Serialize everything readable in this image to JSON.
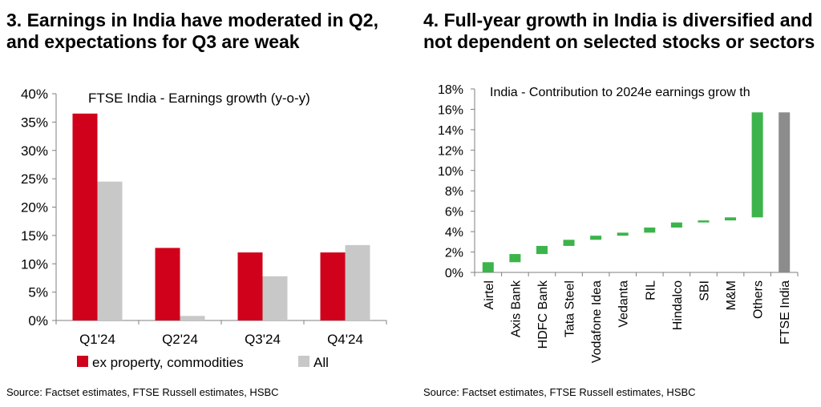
{
  "left_panel": {
    "title": "3. Earnings in India have moderated in Q2, and expectations for Q3 are weak",
    "source": "Source: Factset estimates, FTSE Russell estimates, HSBC"
  },
  "right_panel": {
    "title": "4. Full-year growth in India is diversified and not dependent on selected stocks or sectors",
    "source": "Source: Factset estimates, FTSE Russell estimates, HSBC"
  },
  "colors": {
    "red": "#d0021b",
    "gray_light": "#c8c8c8",
    "green": "#3cb44b",
    "gray_dark": "#8c8c8c",
    "axis": "#7f7f7f"
  },
  "chart_data": [
    {
      "type": "bar",
      "title": "FTSE India - Earnings growth (y-o-y)",
      "categories": [
        "Q1'24",
        "Q2'24",
        "Q3'24",
        "Q4'24"
      ],
      "series": [
        {
          "name": "ex property, commodities",
          "color": "#d0021b",
          "values": [
            36.5,
            12.8,
            12.0,
            12.0
          ]
        },
        {
          "name": "All",
          "color": "#c8c8c8",
          "values": [
            24.5,
            0.8,
            7.8,
            13.3
          ]
        }
      ],
      "ylim": [
        0,
        40
      ],
      "yticks": [
        "0%",
        "5%",
        "10%",
        "15%",
        "20%",
        "25%",
        "30%",
        "35%",
        "40%"
      ],
      "legend": "bottom"
    },
    {
      "type": "bar",
      "subtype": "waterfall",
      "title": "India - Contribution to 2024e earnings grow th",
      "categories": [
        "Airtel",
        "Axis Bank",
        "HDFC Bank",
        "Tata Steel",
        "Vodafone Idea",
        "Vedanta",
        "RIL",
        "Hindalco",
        "SBI",
        "M&M",
        "Others",
        "FTSE India"
      ],
      "ranges": [
        [
          0,
          1.0
        ],
        [
          1.0,
          1.8
        ],
        [
          1.8,
          2.6
        ],
        [
          2.6,
          3.2
        ],
        [
          3.2,
          3.6
        ],
        [
          3.6,
          3.9
        ],
        [
          3.9,
          4.4
        ],
        [
          4.4,
          4.9
        ],
        [
          4.9,
          5.1
        ],
        [
          5.1,
          5.4
        ],
        [
          5.4,
          15.7
        ],
        [
          0,
          15.7
        ]
      ],
      "ylim": [
        0,
        18
      ],
      "yticks": [
        "0%",
        "2%",
        "4%",
        "6%",
        "8%",
        "10%",
        "12%",
        "14%",
        "16%",
        "18%"
      ]
    }
  ]
}
